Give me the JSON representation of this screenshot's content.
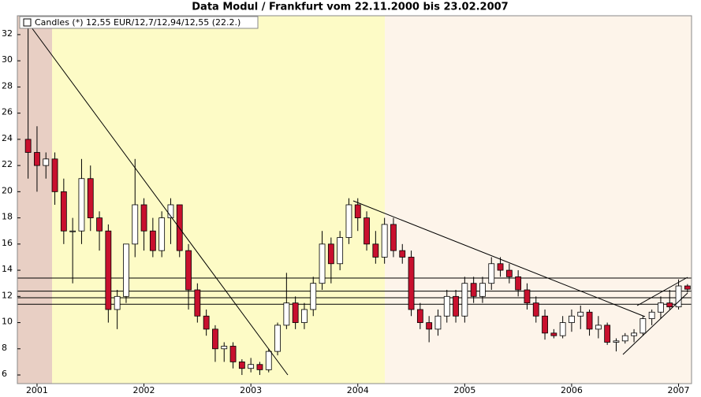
{
  "chart_data": {
    "type": "candlestick",
    "title": "Data Modul / Frankfurt vom 22.11.2000 bis 23.02.2007",
    "legend_label": "Candles (*) 12,55 EUR/12,7/12,94/12,55 (22.2.)",
    "categories": [
      null,
      "2001",
      null,
      null,
      null,
      null,
      null,
      null,
      null,
      null,
      null,
      null,
      null,
      "2002",
      null,
      null,
      null,
      null,
      null,
      null,
      null,
      null,
      null,
      null,
      null,
      "2003",
      null,
      null,
      null,
      null,
      null,
      null,
      null,
      null,
      null,
      null,
      null,
      "2004",
      null,
      null,
      null,
      null,
      null,
      null,
      null,
      null,
      null,
      null,
      null,
      "2005",
      null,
      null,
      null,
      null,
      null,
      null,
      null,
      null,
      null,
      null,
      null,
      "2006",
      null,
      null,
      null,
      null,
      null,
      null,
      null,
      null,
      null,
      null,
      null,
      "2007",
      null
    ],
    "open": [
      24,
      23,
      22,
      22.5,
      20,
      17,
      17,
      21,
      18,
      17,
      11,
      12,
      16,
      19,
      17,
      15.5,
      18,
      19,
      15.5,
      12.5,
      10.5,
      9.5,
      8,
      8.2,
      7,
      6.5,
      6.8,
      6.4,
      7.8,
      9.8,
      11.5,
      10,
      11,
      13,
      16,
      14.5,
      16.5,
      19,
      18,
      16,
      15,
      17.5,
      15.5,
      15,
      11,
      10,
      9.5,
      10.5,
      12,
      10.5,
      13,
      12,
      13,
      14.5,
      14,
      13.5,
      12.5,
      11.5,
      10.5,
      9.2,
      9,
      10,
      10.5,
      10.8,
      9.5,
      9.8,
      8.5,
      8.6,
      9,
      9.2,
      10.3,
      10.8,
      11.5,
      11.2,
      12.8
    ],
    "high": [
      33,
      25,
      23,
      23,
      21,
      18,
      22.5,
      22,
      18.5,
      17.5,
      12.5,
      16,
      22.5,
      19.5,
      18,
      18.5,
      19.5,
      19,
      16,
      13,
      11,
      9.8,
      8.5,
      8.5,
      7.2,
      7.3,
      7,
      8,
      10,
      13.8,
      12,
      11.5,
      13.5,
      17,
      16.5,
      17,
      19.5,
      19.5,
      18.5,
      17,
      18,
      18,
      16,
      15.5,
      11.5,
      10.5,
      11,
      12.5,
      12.5,
      13.5,
      13.5,
      13.5,
      15,
      15,
      14.5,
      14,
      13,
      12,
      11,
      9.5,
      10.5,
      11,
      11.3,
      11,
      10.5,
      10,
      8.8,
      9.2,
      9.5,
      10.5,
      11,
      12,
      12.5,
      13.3,
      12.94
    ],
    "low": [
      21,
      20,
      21,
      19,
      16,
      13,
      16,
      17,
      15.5,
      10,
      9.5,
      11.5,
      15,
      15.5,
      15,
      15,
      16,
      15,
      11,
      10,
      9,
      7,
      7,
      6.5,
      6,
      6.2,
      6,
      6.2,
      7.5,
      9.5,
      9.5,
      9.5,
      10.5,
      12.5,
      13,
      14,
      16,
      17,
      15.5,
      14.5,
      14.5,
      15,
      14.5,
      10.5,
      9.5,
      8.5,
      9,
      10,
      10,
      10,
      11.5,
      11.5,
      12.5,
      13.5,
      13,
      12,
      11,
      10,
      8.7,
      8.8,
      8.8,
      9.3,
      9.5,
      9,
      8.8,
      8.3,
      7.8,
      8.4,
      8.5,
      9,
      9.8,
      10.3,
      11,
      11,
      12.3
    ],
    "close": [
      23,
      22,
      22.5,
      20,
      17,
      17,
      21,
      18,
      17,
      11,
      12,
      16,
      19,
      17,
      15.5,
      18,
      19,
      15.5,
      12.5,
      10.5,
      9.5,
      8,
      8.2,
      7,
      6.5,
      6.8,
      6.4,
      7.8,
      9.8,
      11.5,
      10,
      11,
      13,
      16,
      14.5,
      16.5,
      19,
      18,
      16,
      15,
      17.5,
      15.5,
      15,
      11,
      10,
      9.5,
      10.5,
      12,
      10.5,
      13,
      12,
      13,
      14.5,
      14,
      13.5,
      12.5,
      11.5,
      10.5,
      9.2,
      9,
      10,
      10.5,
      10.8,
      9.5,
      9.8,
      8.5,
      8.6,
      9,
      9.2,
      10.3,
      10.8,
      11.5,
      11.2,
      12.8,
      12.55
    ],
    "up_color": "#ffffff",
    "down_color": "#c8102e",
    "hlines": [
      13.4,
      12.4,
      11.9,
      11.4
    ],
    "ylim": [
      5.34,
      33.44
    ],
    "yticks": [
      6,
      8,
      10,
      12,
      14,
      16,
      18,
      20,
      22,
      24,
      26,
      28,
      30,
      32
    ],
    "grid": false
  }
}
